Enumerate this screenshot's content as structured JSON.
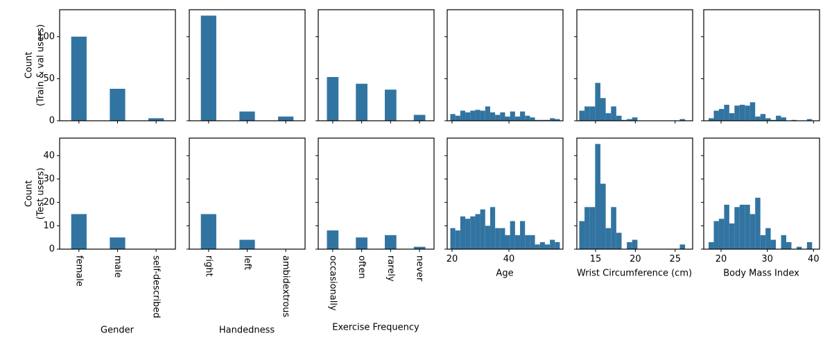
{
  "figure": {
    "background": "#ffffff",
    "bar_color": "#3274a1",
    "axis_color": "#000000",
    "rows": [
      {
        "ylabel": [
          "Count",
          "(Train & val users)"
        ],
        "yticks": [
          0,
          50,
          100
        ],
        "ylim": [
          0,
          132
        ]
      },
      {
        "ylabel": [
          "Count",
          "(Test users)"
        ],
        "yticks": [
          0,
          10,
          20,
          30,
          40
        ],
        "ylim": [
          0,
          47.5
        ]
      }
    ]
  },
  "chart_data": [
    {
      "id": "gender-train",
      "type": "bar",
      "row": 0,
      "col": 0,
      "categories": [
        "female",
        "male",
        "self-described"
      ],
      "values": [
        100,
        38,
        3
      ]
    },
    {
      "id": "handedness-train",
      "type": "bar",
      "row": 0,
      "col": 1,
      "categories": [
        "right",
        "left",
        "ambidextrous"
      ],
      "values": [
        125,
        11,
        5
      ]
    },
    {
      "id": "exercise-train",
      "type": "bar",
      "row": 0,
      "col": 2,
      "categories": [
        "occasionally",
        "often",
        "rarely",
        "never"
      ],
      "values": [
        52,
        44,
        37,
        7
      ]
    },
    {
      "id": "age-train",
      "type": "histogram",
      "row": 0,
      "col": 3,
      "xlim": [
        18.3,
        59.0
      ],
      "bin_start": 19.4,
      "bin_width": 1.75,
      "xticks": [
        20,
        40
      ],
      "values": [
        8,
        6,
        12,
        10,
        12,
        13,
        12,
        17,
        10,
        7,
        10,
        5,
        11,
        5,
        11,
        6,
        4,
        1,
        1,
        1,
        3,
        2
      ]
    },
    {
      "id": "wrist-train",
      "type": "histogram",
      "row": 0,
      "col": 4,
      "xlim": [
        12.65,
        27.2
      ],
      "bin_start": 12.95,
      "bin_width": 0.665,
      "xticks": [
        15,
        20,
        25
      ],
      "values": [
        12,
        17,
        17,
        45,
        27,
        9,
        17,
        6,
        1,
        2,
        4,
        0,
        0,
        0,
        0,
        0,
        0,
        0,
        0,
        2
      ]
    },
    {
      "id": "bmi-train",
      "type": "histogram",
      "row": 0,
      "col": 5,
      "xlim": [
        16.25,
        41.3
      ],
      "bin_start": 17.3,
      "bin_width": 1.12,
      "xticks": [
        20,
        30,
        40
      ],
      "values": [
        3,
        12,
        14,
        19,
        9,
        18,
        19,
        18,
        22,
        5,
        8,
        3,
        1,
        6,
        4,
        0,
        1,
        0,
        0,
        2
      ]
    },
    {
      "id": "gender-test",
      "type": "bar",
      "row": 1,
      "col": 0,
      "xlabel": "Gender",
      "categories": [
        "female",
        "male",
        "self-described"
      ],
      "values": [
        15,
        5,
        0
      ]
    },
    {
      "id": "handedness-test",
      "type": "bar",
      "row": 1,
      "col": 1,
      "xlabel": "Handedness",
      "categories": [
        "right",
        "left",
        "ambidextrous"
      ],
      "values": [
        15,
        4,
        0
      ]
    },
    {
      "id": "exercise-test",
      "type": "bar",
      "row": 1,
      "col": 2,
      "xlabel": "Exercise Frequency",
      "categories": [
        "occasionally",
        "often",
        "rarely",
        "never"
      ],
      "values": [
        8,
        5,
        6,
        1
      ]
    },
    {
      "id": "age-test",
      "type": "histogram",
      "row": 1,
      "col": 3,
      "xlabel": "Age",
      "xlim": [
        18.3,
        59.0
      ],
      "bin_start": 19.4,
      "bin_width": 1.75,
      "xticks": [
        20,
        40
      ],
      "values": [
        9,
        8,
        14,
        13,
        14,
        15,
        17,
        10,
        18,
        9,
        9,
        6,
        12,
        6,
        12,
        6,
        6,
        2,
        3,
        2,
        4,
        3
      ]
    },
    {
      "id": "wrist-test",
      "type": "histogram",
      "row": 1,
      "col": 4,
      "xlabel": "Wrist Circumference (cm)",
      "xlim": [
        12.65,
        27.2
      ],
      "bin_start": 12.95,
      "bin_width": 0.665,
      "xticks": [
        15,
        20,
        25
      ],
      "values": [
        12,
        18,
        18,
        45,
        28,
        9,
        18,
        7,
        0,
        3,
        4,
        0,
        0,
        0,
        0,
        0,
        0,
        0,
        0,
        2
      ]
    },
    {
      "id": "bmi-test",
      "type": "histogram",
      "row": 1,
      "col": 5,
      "xlabel": "Body Mass Index",
      "xlim": [
        16.25,
        41.3
      ],
      "bin_start": 17.3,
      "bin_width": 1.12,
      "xticks": [
        20,
        30,
        40
      ],
      "values": [
        3,
        12,
        13,
        19,
        11,
        18,
        19,
        19,
        15,
        22,
        6,
        9,
        4,
        0,
        6,
        3,
        0,
        1,
        0,
        3
      ]
    }
  ]
}
